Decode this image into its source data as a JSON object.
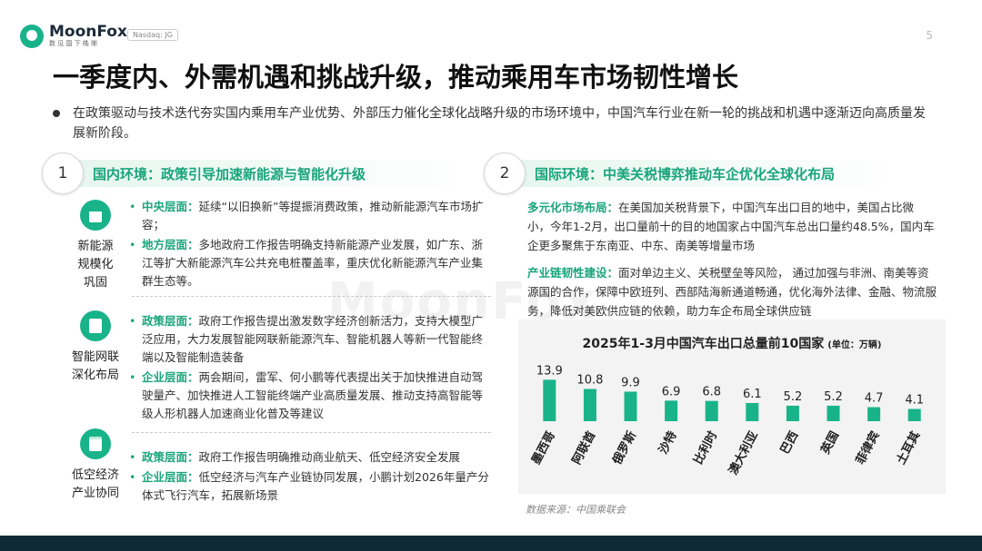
{
  "header": {
    "brand": "MoonFox",
    "brand_sub": "数 见 国 下 皓 晰",
    "ticker": "Nasdaq: JG",
    "page_number": "5",
    "watermark": "MoonFox"
  },
  "title": "一季度内、外需机遇和挑战升级，推动乘用车市场韧性增长",
  "intro": "在政策驱动与技术迭代夯实国内乘用车产业优势、外部压力催化全球化战略升级的市场环境中，中国汽车行业在新一轮的挑战和机遇中逐渐迈向高质量发展新阶段。",
  "left_section": {
    "number": "1",
    "title": "国内环境：政策引导加速新能源与智能化升级",
    "categories": [
      {
        "name_lines": [
          "新能源",
          "规模化",
          "巩固"
        ],
        "icon": "briefcase-icon",
        "items": [
          {
            "label": "中央层面：",
            "text": "延续“以旧换新”等提振消费政策，推动新能源汽车市场扩容；"
          },
          {
            "label": "地方层面：",
            "text": "多地政府工作报告明确支持新能源产业发展，如广东、浙江等扩大新能源汽车公共充电桩覆盖率，重庆优化新能源汽车产业集群生态等。"
          }
        ]
      },
      {
        "name_lines": [
          "智能网联",
          "深化布局"
        ],
        "icon": "document-icon",
        "items": [
          {
            "label": "政策层面：",
            "text": "政府工作报告提出激发数字经济创新活力，支持大模型广泛应用，大力发展智能网联新能源汽车、智能机器人等新一代智能终端以及智能制造装备"
          },
          {
            "label": "企业层面：",
            "text": "两会期间，雷军、何小鹏等代表提出关于加快推进自动驾驶量产、加快推进人工智能终端产业高质量发展、推动支持高智能等级人形机器人加速商业化普及等建议"
          }
        ]
      },
      {
        "name_lines": [
          "低空经济",
          "产业协同"
        ],
        "icon": "clipboard-icon",
        "items": [
          {
            "label": "政策层面：",
            "text": "政府工作报告明确推动商业航天、低空经济安全发展"
          },
          {
            "label": "企业层面：",
            "text": "低空经济与汽车产业链协同发展，小鹏计划2026年量产分体式飞行汽车，拓展新场景"
          }
        ]
      }
    ]
  },
  "right_section": {
    "number": "2",
    "title": "国际环境：中美关税博弈推动车企优化全球化布局",
    "blocks": [
      {
        "label": "多元化市场布局：",
        "text": "在美国加关税背景下，中国汽车出口目的地中，美国占比微小，今年1-2月，出口量前十的目的地国家占中国汽车总出口量约48.5%，国内车企更多聚焦于东南亚、中东、南美等增量市场"
      },
      {
        "label": "产业链韧性建设：",
        "text": "面对单边主义、关税壁垒等风险，  通过加强与非洲、南美等资源国的合作，保障中欧班列、西部陆海新通道畅通，优化海外法律、金融、物流服务，降低对美欧供应链的依赖，助力车企布局全球供应链"
      }
    ]
  },
  "chart_data": {
    "type": "bar",
    "title": "2025年1-3月中国汽车出口总量前10国家",
    "unit": "(单位：万辆)",
    "categories": [
      "墨西哥",
      "阿联酋",
      "俄罗斯",
      "沙特",
      "比利时",
      "澳大利亚",
      "巴西",
      "英国",
      "菲律宾",
      "土耳其"
    ],
    "values": [
      13.9,
      10.8,
      9.9,
      6.9,
      6.8,
      6.1,
      5.2,
      5.2,
      4.7,
      4.1
    ],
    "value_labels": [
      "13.9",
      "10.8",
      "9.9",
      "6.9",
      "6.8",
      "6.1",
      "5.2",
      "5.2",
      "4.7",
      "4.1"
    ],
    "ylim": [
      0,
      14
    ],
    "grid": false,
    "bar_color": "#19b38a"
  },
  "source": "数据来源：中国乘联会"
}
